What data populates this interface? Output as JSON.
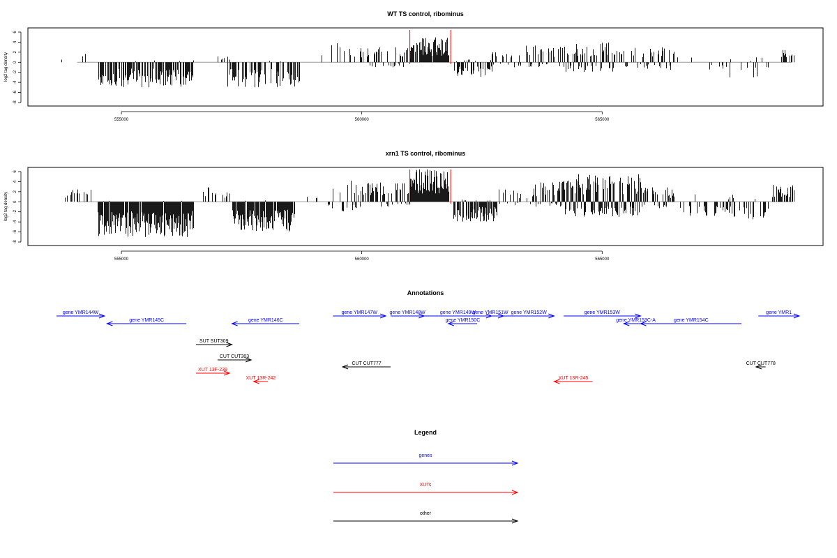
{
  "chart_data": [
    {
      "type": "bar",
      "title": "WT TS control, ribominus",
      "ylabel": "log2 tag density",
      "ylim": [
        -8,
        6
      ],
      "yticks": [
        6,
        4,
        2,
        0,
        -2,
        -4,
        -6,
        -8
      ],
      "xlim": [
        553650,
        569000
      ],
      "xticks": [
        555000,
        560000,
        565000
      ],
      "baseline_color": "#999999",
      "bar_color": "#000000",
      "series": [
        {
          "segments": [
            {
              "start": 553750,
              "end": 554400,
              "density": 0.03,
              "up": 2.0,
              "down": 0
            },
            {
              "start": 554500,
              "end": 556500,
              "density": 0.72,
              "up": 0.4,
              "down": 5.0
            },
            {
              "start": 557000,
              "end": 557300,
              "density": 0.25,
              "up": 1.2,
              "down": 0
            },
            {
              "start": 557200,
              "end": 558700,
              "density": 0.62,
              "up": 0.3,
              "down": 5.0
            },
            {
              "start": 558900,
              "end": 559300,
              "density": 0.08,
              "up": 2.0,
              "down": 0
            },
            {
              "start": 559300,
              "end": 560100,
              "density": 0.25,
              "up": 3.8,
              "down": 0.6
            },
            {
              "start": 560100,
              "end": 561000,
              "density": 0.4,
              "up": 3.0,
              "down": 1.0
            },
            {
              "start": 561000,
              "end": 561800,
              "density": 0.92,
              "up": 5.0,
              "down": 0
            },
            {
              "start": 561900,
              "end": 562700,
              "density": 0.55,
              "up": 0.6,
              "down": 3.0
            },
            {
              "start": 562700,
              "end": 563400,
              "density": 0.3,
              "up": 2.0,
              "down": 1.0
            },
            {
              "start": 563400,
              "end": 564200,
              "density": 0.5,
              "up": 3.8,
              "down": 1.0
            },
            {
              "start": 564200,
              "end": 565500,
              "density": 0.65,
              "up": 4.0,
              "down": 2.0
            },
            {
              "start": 565500,
              "end": 566500,
              "density": 0.5,
              "up": 3.0,
              "down": 1.5
            },
            {
              "start": 566500,
              "end": 567500,
              "density": 0.12,
              "up": 1.0,
              "down": 2.0
            },
            {
              "start": 567500,
              "end": 568500,
              "density": 0.15,
              "up": 1.0,
              "down": 3.0
            },
            {
              "start": 568700,
              "end": 569000,
              "density": 0.35,
              "up": 3.2,
              "down": 0
            }
          ]
        }
      ],
      "highlight_lines": [
        561000,
        561850
      ],
      "highlight_color": "#ff0000"
    },
    {
      "type": "bar",
      "title": "xrn1 TS control, ribominus",
      "ylabel": "log2 tag density",
      "ylim": [
        -8,
        6
      ],
      "yticks": [
        6,
        4,
        2,
        0,
        -2,
        -4,
        -6,
        -8
      ],
      "xlim": [
        553650,
        569000
      ],
      "xticks": [
        555000,
        560000,
        565000
      ],
      "baseline_color": "#999999",
      "bar_color": "#000000",
      "series": [
        {
          "segments": [
            {
              "start": 553750,
              "end": 554400,
              "density": 0.4,
              "up": 2.5,
              "down": 0
            },
            {
              "start": 554500,
              "end": 556500,
              "density": 0.98,
              "up": 0.3,
              "down": 7.0
            },
            {
              "start": 556700,
              "end": 557300,
              "density": 0.3,
              "up": 3.0,
              "down": 0
            },
            {
              "start": 557300,
              "end": 558600,
              "density": 0.9,
              "up": 0.3,
              "down": 6.0
            },
            {
              "start": 558800,
              "end": 559300,
              "density": 0.15,
              "up": 2.0,
              "down": 1.0
            },
            {
              "start": 559300,
              "end": 560100,
              "density": 0.45,
              "up": 4.5,
              "down": 2.0
            },
            {
              "start": 560100,
              "end": 561000,
              "density": 0.7,
              "up": 4.0,
              "down": 1.0
            },
            {
              "start": 561000,
              "end": 561800,
              "density": 0.99,
              "up": 6.5,
              "down": 0
            },
            {
              "start": 561900,
              "end": 562800,
              "density": 0.9,
              "up": 0.6,
              "down": 4.0
            },
            {
              "start": 562800,
              "end": 563500,
              "density": 0.35,
              "up": 2.5,
              "down": 1.0
            },
            {
              "start": 563500,
              "end": 564200,
              "density": 0.8,
              "up": 4.0,
              "down": 1.0
            },
            {
              "start": 564200,
              "end": 565800,
              "density": 0.95,
              "up": 5.5,
              "down": 3.0
            },
            {
              "start": 565800,
              "end": 566500,
              "density": 0.6,
              "up": 3.0,
              "down": 1.5
            },
            {
              "start": 566500,
              "end": 567500,
              "density": 0.35,
              "up": 1.5,
              "down": 3.0
            },
            {
              "start": 567500,
              "end": 568500,
              "density": 0.4,
              "up": 1.5,
              "down": 3.5
            },
            {
              "start": 568500,
              "end": 569000,
              "density": 0.7,
              "up": 3.5,
              "down": 0
            }
          ]
        }
      ],
      "highlight_lines": [
        561000,
        561850
      ],
      "highlight_color": "#ff0000"
    }
  ],
  "annotations": {
    "title": "Annotations",
    "genes": [
      {
        "label": "gene YMR144W",
        "start": 553650,
        "end": 554650,
        "strand": "+",
        "row": 0
      },
      {
        "label": "gene YMR145C",
        "start": 554700,
        "end": 556350,
        "strand": "-",
        "row": 1
      },
      {
        "label": "gene YMR146C",
        "start": 557300,
        "end": 558700,
        "strand": "-",
        "row": 1
      },
      {
        "label": "gene YMR147W",
        "start": 559400,
        "end": 560500,
        "strand": "+",
        "row": 0
      },
      {
        "label": "gene YMR148W",
        "start": 560600,
        "end": 561300,
        "strand": "+",
        "row": 0
      },
      {
        "label": "gene YMR149W",
        "start": 561300,
        "end": 562700,
        "strand": "+",
        "row": 0
      },
      {
        "label": "gene YMR150C",
        "start": 561800,
        "end": 562400,
        "strand": "-",
        "row": 1
      },
      {
        "label": "gene YMR151W",
        "start": 562400,
        "end": 562950,
        "strand": "+",
        "row": 0
      },
      {
        "label": "gene YMR152W",
        "start": 562950,
        "end": 564000,
        "strand": "+",
        "row": 0
      },
      {
        "label": "gene YMR153W",
        "start": 564200,
        "end": 565800,
        "strand": "+",
        "row": 0
      },
      {
        "label": "gene YMR153C-A",
        "start": 565450,
        "end": 565950,
        "strand": "-",
        "row": 1
      },
      {
        "label": "gene YMR154C",
        "start": 565800,
        "end": 567900,
        "strand": "-",
        "row": 1
      },
      {
        "label": "gene YMR1",
        "start": 568250,
        "end": 569100,
        "strand": "+",
        "row": 0
      }
    ],
    "other": [
      {
        "label": "SUT SUT309",
        "start": 556550,
        "end": 557300,
        "strand": "+",
        "row": 0
      },
      {
        "label": "CUT CUT303",
        "start": 557000,
        "end": 557700,
        "strand": "+",
        "row": 1
      },
      {
        "label": "CUT CUT777",
        "start": 559600,
        "end": 560600,
        "strand": "-",
        "row": 2
      },
      {
        "label": "CUT CUT778",
        "start": 568200,
        "end": 568400,
        "strand": "-",
        "row": 2
      }
    ],
    "xuts": [
      {
        "label": "XUT 13F-239",
        "start": 556550,
        "end": 557250,
        "strand": "+",
        "row": 0
      },
      {
        "label": "XUT 13R-242",
        "start": 557750,
        "end": 558050,
        "strand": "-",
        "row": 1
      },
      {
        "label": "XUT 13R-245",
        "start": 564000,
        "end": 564800,
        "strand": "-",
        "row": 1
      }
    ],
    "colors": {
      "genes": "#0000ff",
      "xuts": "#ff0000",
      "other": "#000000"
    }
  },
  "legend": {
    "title": "Legend",
    "items": [
      {
        "label": "genes",
        "color": "#0000ff"
      },
      {
        "label": "XUTs",
        "color": "#ff0000"
      },
      {
        "label": "other",
        "color": "#000000"
      }
    ]
  }
}
